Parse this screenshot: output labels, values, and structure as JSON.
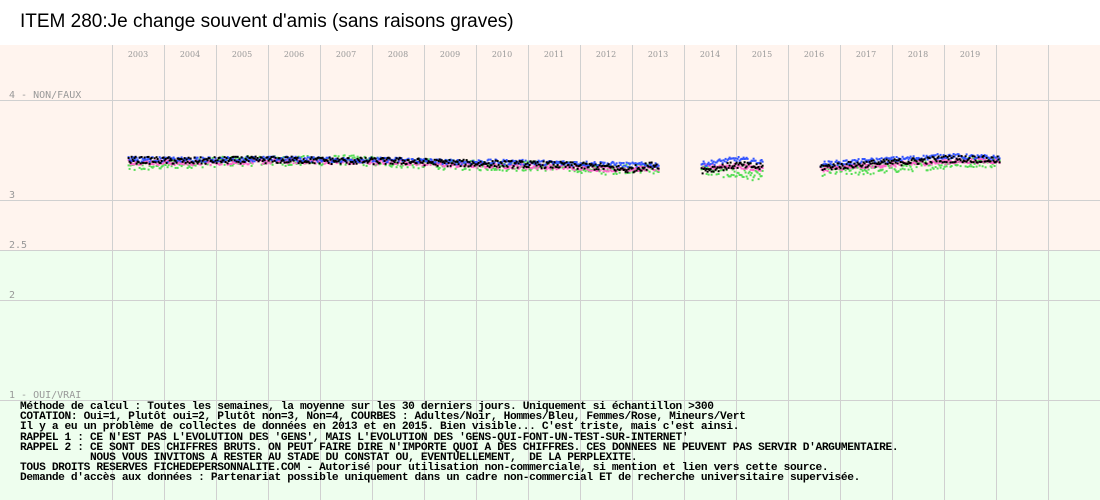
{
  "chart_data": {
    "type": "scatter",
    "title": "ITEM 280:Je change souvent d'amis (sans raisons graves)",
    "x_ticks": [
      "2003",
      "2004",
      "2005",
      "2006",
      "2007",
      "2008",
      "2009",
      "2010",
      "2011",
      "2012",
      "2013",
      "2014",
      "2015",
      "2016",
      "2017",
      "2018",
      "2019"
    ],
    "y_ticks": [
      {
        "value": 4,
        "label": "4 - NON/FAUX"
      },
      {
        "value": 3,
        "label": "3"
      },
      {
        "value": 2.5,
        "label": "2.5"
      },
      {
        "value": 2,
        "label": "2"
      },
      {
        "value": 1,
        "label": "1 - OUI/VRAI"
      }
    ],
    "ylim": [
      1,
      4.05
    ],
    "xlim": [
      2002.5,
      2020.5
    ],
    "grid": true,
    "background_bands": [
      {
        "from": 2.5,
        "to": 4.05,
        "color": "#fff4ee"
      },
      {
        "from": 1,
        "to": 2.5,
        "color": "#eefeee"
      }
    ],
    "gaps": [
      [
        2013.0,
        2013.8
      ],
      [
        2015.0,
        2016.1
      ]
    ],
    "series": [
      {
        "name": "Adultes",
        "color": "#000000",
        "x": [
          2002.8,
          2004.0,
          2005.0,
          2006.0,
          2007.0,
          2008.0,
          2009.0,
          2010.0,
          2011.0,
          2012.0,
          2012.4,
          2012.9,
          2013.85,
          2014.5,
          2014.95,
          2016.15,
          2017.0,
          2018.0,
          2018.5,
          2019.0,
          2019.55
        ],
        "y": [
          3.4,
          3.39,
          3.4,
          3.4,
          3.39,
          3.39,
          3.37,
          3.36,
          3.35,
          3.33,
          3.3,
          3.35,
          3.3,
          3.35,
          3.33,
          3.33,
          3.36,
          3.39,
          3.41,
          3.41,
          3.4
        ]
      },
      {
        "name": "Hommes",
        "color": "#3355ff",
        "x": [
          2002.8,
          2004.0,
          2005.0,
          2006.0,
          2007.0,
          2008.0,
          2009.0,
          2010.0,
          2011.0,
          2012.0,
          2012.4,
          2013.85,
          2014.5,
          2014.95,
          2016.15,
          2017.0,
          2018.0,
          2018.5,
          2019.0,
          2019.55
        ],
        "y": [
          3.41,
          3.4,
          3.41,
          3.41,
          3.4,
          3.4,
          3.38,
          3.38,
          3.37,
          3.36,
          3.35,
          3.36,
          3.41,
          3.38,
          3.36,
          3.39,
          3.42,
          3.44,
          3.43,
          3.42
        ]
      },
      {
        "name": "Femmes",
        "color": "#ff66cc",
        "x": [
          2002.8,
          2004.0,
          2005.0,
          2006.0,
          2007.0,
          2008.0,
          2009.0,
          2010.0,
          2011.0,
          2012.0,
          2012.4,
          2013.85,
          2014.5,
          2014.95,
          2016.15,
          2017.0,
          2018.0,
          2018.5,
          2019.0,
          2019.55
        ],
        "y": [
          3.38,
          3.37,
          3.38,
          3.39,
          3.38,
          3.38,
          3.35,
          3.34,
          3.33,
          3.31,
          3.31,
          3.33,
          3.34,
          3.31,
          3.31,
          3.34,
          3.37,
          3.38,
          3.39,
          3.39
        ]
      },
      {
        "name": "Mineurs",
        "color": "#55dd55",
        "x": [
          2002.8,
          2004.0,
          2005.0,
          2006.0,
          2007.0,
          2008.0,
          2009.0,
          2010.0,
          2011.0,
          2012.0,
          2012.4,
          2013.85,
          2014.5,
          2014.95,
          2016.15,
          2017.0,
          2018.0,
          2018.5,
          2019.0,
          2019.55
        ],
        "y": [
          3.33,
          3.37,
          3.39,
          3.39,
          3.4,
          3.37,
          3.35,
          3.34,
          3.34,
          3.3,
          3.32,
          3.3,
          3.26,
          3.24,
          3.29,
          3.3,
          3.34,
          3.36,
          3.38,
          3.37
        ]
      }
    ]
  },
  "notes": [
    "Méthode de calcul : Toutes les semaines, la moyenne sur les 30 derniers jours. Uniquement si échantillon >300",
    "COTATION: Oui=1, Plutôt oui=2, Plutôt non=3, Non=4, COURBES : Adultes/Noir, Hommes/Bleu, Femmes/Rose, Mineurs/Vert",
    "Il y a eu un problème de collectes de données en 2013 et en 2015. Bien visible... C'est triste, mais c'est ainsi.",
    "RAPPEL 1 : CE N'EST PAS L'EVOLUTION DES 'GENS', MAIS L'EVOLUTION DES 'GENS-QUI-FONT-UN-TEST-SUR-INTERNET'",
    "RAPPEL 2 : CE SONT DES CHIFFRES BRUTS. ON PEUT FAIRE DIRE N'IMPORTE QUOI A DES CHIFFRES. CES DONNEES NE PEUVENT PAS SERVIR D'ARGUMENTAIRE.",
    "           NOUS VOUS INVITONS A RESTER AU STADE DU CONSTAT OU, EVENTUELLEMENT,  DE LA PERPLEXITE.",
    "TOUS DROITS RESERVES FICHEDEPERSONNALITE.COM - Autorisé pour utilisation non-commerciale, si mention et lien vers cette source.",
    "Demande d'accès aux données : Partenariat possible uniquement dans un cadre non-commercial ET de recherche universitaire supervisée."
  ]
}
